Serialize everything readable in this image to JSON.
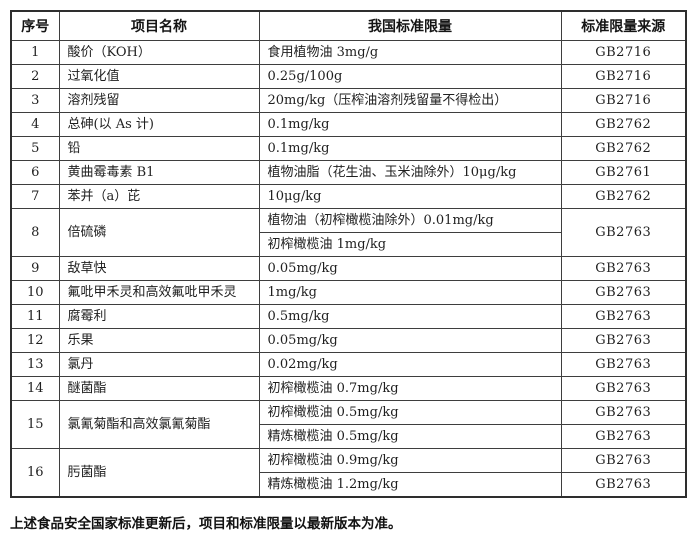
{
  "table": {
    "columns": [
      "序号",
      "项目名称",
      "我国标准限量",
      "标准限量来源"
    ],
    "rows": [
      {
        "no": "1",
        "name": "酸价（KOH）",
        "entries": [
          {
            "limit": "食用植物油 3mg/g",
            "source": "GB2716"
          }
        ]
      },
      {
        "no": "2",
        "name": "过氧化值",
        "entries": [
          {
            "limit": "0.25g/100g",
            "source": "GB2716"
          }
        ]
      },
      {
        "no": "3",
        "name": "溶剂残留",
        "entries": [
          {
            "limit": "20mg/kg（压榨油溶剂残留量不得检出）",
            "source": "GB2716"
          }
        ]
      },
      {
        "no": "4",
        "name": "总砷(以 As 计)",
        "entries": [
          {
            "limit": "0.1mg/kg",
            "source": "GB2762"
          }
        ]
      },
      {
        "no": "5",
        "name": "铅",
        "entries": [
          {
            "limit": "0.1mg/kg",
            "source": "GB2762"
          }
        ]
      },
      {
        "no": "6",
        "name": "黄曲霉毒素 B1",
        "entries": [
          {
            "limit": "植物油脂（花生油、玉米油除外）10μg/kg",
            "source": "GB2761"
          }
        ]
      },
      {
        "no": "7",
        "name": "苯并（a）芘",
        "entries": [
          {
            "limit": "10μg/kg",
            "source": "GB2762"
          }
        ]
      },
      {
        "no": "8",
        "name": "倍硫磷",
        "merged_source": true,
        "entries": [
          {
            "limit": "植物油（初榨橄榄油除外）0.01mg/kg",
            "source": "GB2763"
          },
          {
            "limit": "初榨橄榄油 1mg/kg"
          }
        ]
      },
      {
        "no": "9",
        "name": "敌草快",
        "entries": [
          {
            "limit": "0.05mg/kg",
            "source": "GB2763"
          }
        ]
      },
      {
        "no": "10",
        "name": "氟吡甲禾灵和高效氟吡甲禾灵",
        "entries": [
          {
            "limit": "1mg/kg",
            "source": "GB2763"
          }
        ]
      },
      {
        "no": "11",
        "name": "腐霉利",
        "entries": [
          {
            "limit": "0.5mg/kg",
            "source": "GB2763"
          }
        ]
      },
      {
        "no": "12",
        "name": "乐果",
        "entries": [
          {
            "limit": "0.05mg/kg",
            "source": "GB2763"
          }
        ]
      },
      {
        "no": "13",
        "name": "氯丹",
        "entries": [
          {
            "limit": "0.02mg/kg",
            "source": "GB2763"
          }
        ]
      },
      {
        "no": "14",
        "name": "醚菌酯",
        "entries": [
          {
            "limit": "初榨橄榄油 0.7mg/kg",
            "source": "GB2763"
          }
        ]
      },
      {
        "no": "15",
        "name": "氯氰菊酯和高效氯氰菊酯",
        "entries": [
          {
            "limit": "初榨橄榄油 0.5mg/kg",
            "source": "GB2763"
          },
          {
            "limit": "精炼橄榄油 0.5mg/kg",
            "source": "GB2763"
          }
        ]
      },
      {
        "no": "16",
        "name": "肟菌酯",
        "entries": [
          {
            "limit": "初榨橄榄油 0.9mg/kg",
            "source": "GB2763"
          },
          {
            "limit": "精炼橄榄油 1.2mg/kg",
            "source": "GB2763"
          }
        ]
      }
    ]
  },
  "footer": {
    "note": "上述食品安全国家标准更新后，项目和标准限量以最新版本为准。"
  }
}
